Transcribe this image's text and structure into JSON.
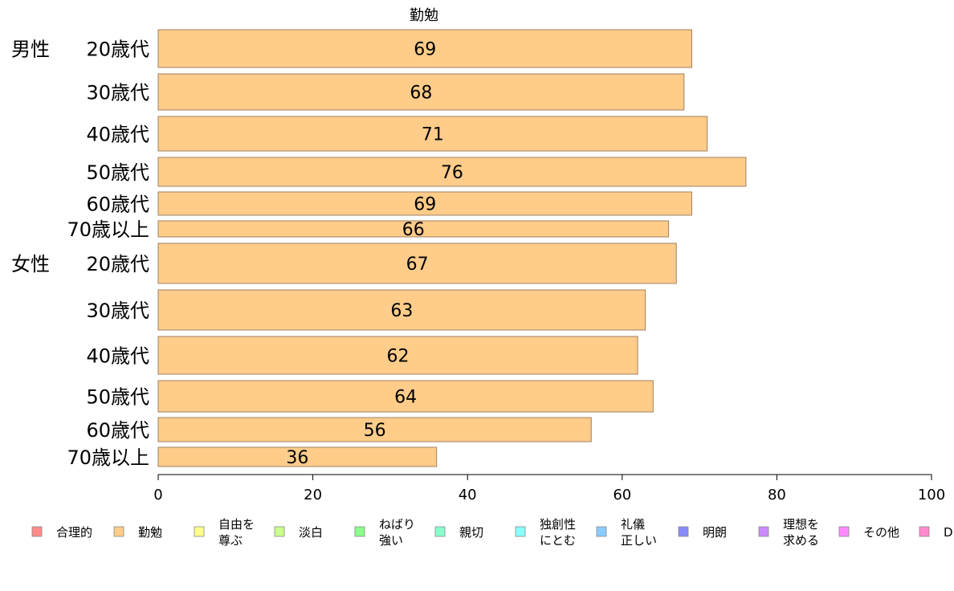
{
  "chart_data": {
    "type": "bar",
    "orientation": "horizontal",
    "title": "勤勉",
    "xlim": [
      0,
      100
    ],
    "xticks": [
      0,
      20,
      40,
      60,
      80,
      100
    ],
    "bar_color": "#ffcc8a",
    "groups": [
      {
        "label": "男性",
        "categories": [
          "20歳代",
          "30歳代",
          "40歳代",
          "50歳代",
          "60歳代",
          "70歳以上"
        ],
        "values": [
          69,
          68,
          71,
          76,
          69,
          66
        ]
      },
      {
        "label": "女性",
        "categories": [
          "20歳代",
          "30歳代",
          "40歳代",
          "50歳代",
          "60歳代",
          "70歳以上"
        ],
        "values": [
          67,
          63,
          62,
          64,
          56,
          36
        ]
      }
    ],
    "legend": {
      "placement": "bottom",
      "items": [
        {
          "label": [
            "合理的"
          ],
          "color": "#ff8a8a"
        },
        {
          "label": [
            "勤勉"
          ],
          "color": "#ffcc8a"
        },
        {
          "label": [
            "自由を",
            "尊ぶ"
          ],
          "color": "#ffff8a"
        },
        {
          "label": [
            "淡白"
          ],
          "color": "#ccff8a"
        },
        {
          "label": [
            "ねばり",
            "強い"
          ],
          "color": "#8aff8a"
        },
        {
          "label": [
            "親切"
          ],
          "color": "#8affcc"
        },
        {
          "label": [
            "独創性",
            "にとむ"
          ],
          "color": "#8affff"
        },
        {
          "label": [
            "礼儀",
            "正しい"
          ],
          "color": "#8accff"
        },
        {
          "label": [
            "明朗"
          ],
          "color": "#8a8aff"
        },
        {
          "label": [
            "理想を",
            "求める"
          ],
          "color": "#cc8aff"
        },
        {
          "label": [
            "その他"
          ],
          "color": "#ff8aff"
        },
        {
          "label": [
            "D"
          ],
          "color": "#ff8acc"
        }
      ]
    }
  }
}
